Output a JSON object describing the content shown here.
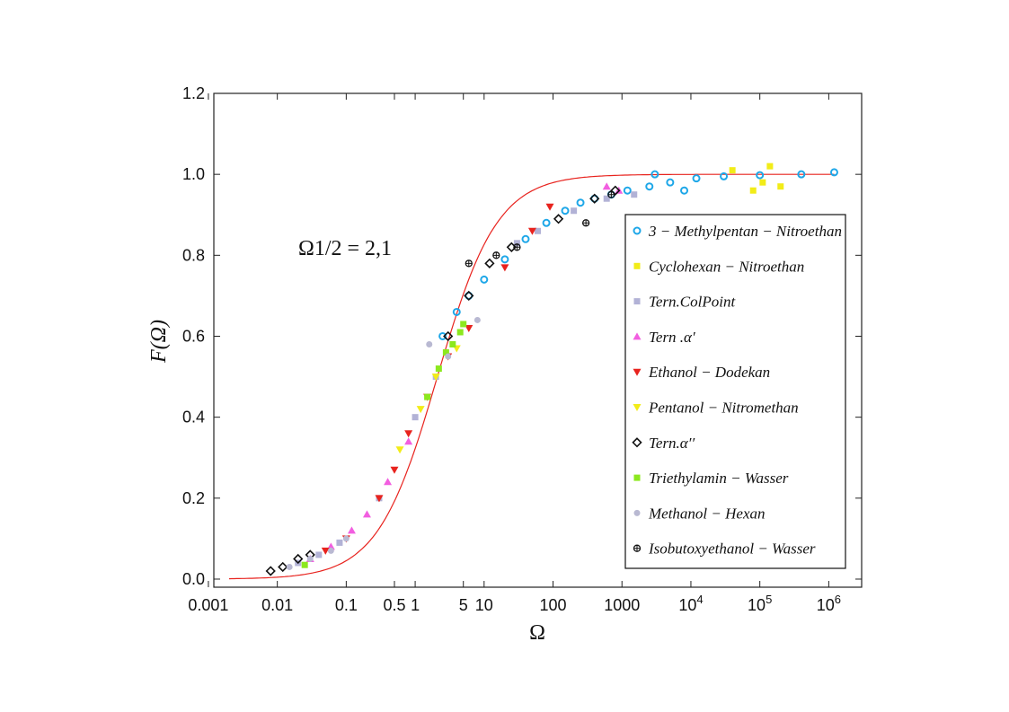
{
  "chart_data": {
    "type": "scatter",
    "title": "",
    "xlabel": "Ω",
    "ylabel": "F(Ω)",
    "xscale": "log",
    "xlim": [
      0.0012,
      3000000
    ],
    "ylim": [
      -0.02,
      1.2
    ],
    "grid": false,
    "legend_position": "right-center",
    "annotation": "Ω1/2 = 2,1",
    "x_ticks": [
      {
        "value": 0.001,
        "label": "0.001"
      },
      {
        "value": 0.01,
        "label": "0.01"
      },
      {
        "value": 0.1,
        "label": "0.1"
      },
      {
        "value": 0.5,
        "label": "0.5"
      },
      {
        "value": 1,
        "label": "1"
      },
      {
        "value": 5,
        "label": "5"
      },
      {
        "value": 10,
        "label": "10"
      },
      {
        "value": 100,
        "label": "100"
      },
      {
        "value": 1000,
        "label": "1000"
      },
      {
        "value": 10000,
        "label": "10^4"
      },
      {
        "value": 100000,
        "label": "10^5"
      },
      {
        "value": 1000000,
        "label": "10^6"
      }
    ],
    "y_ticks": [
      {
        "value": 0.0,
        "label": "0.0"
      },
      {
        "value": 0.2,
        "label": "0.2"
      },
      {
        "value": 0.4,
        "label": "0.4"
      },
      {
        "value": 0.6,
        "label": "0.6"
      },
      {
        "value": 0.8,
        "label": "0.8"
      },
      {
        "value": 1.0,
        "label": "1.0"
      },
      {
        "value": 1.2,
        "label": "1.2"
      }
    ],
    "fit_curve": {
      "name": "fit",
      "color": "#e8231e",
      "half_value_omega": 2.1
    },
    "series": [
      {
        "name": "3 − Methylpentan − Nitroethan",
        "marker": "circle-dot",
        "color": "#1ea7e8",
        "points": [
          [
            2.5,
            0.6
          ],
          [
            4,
            0.66
          ],
          [
            6,
            0.7
          ],
          [
            10,
            0.74
          ],
          [
            20,
            0.79
          ],
          [
            40,
            0.84
          ],
          [
            80,
            0.88
          ],
          [
            150,
            0.91
          ],
          [
            250,
            0.93
          ],
          [
            400,
            0.94
          ],
          [
            700,
            0.95
          ],
          [
            1200,
            0.96
          ],
          [
            2500,
            0.97
          ],
          [
            5000,
            0.98
          ],
          [
            12000,
            0.99
          ],
          [
            30000,
            0.995
          ],
          [
            100000,
            0.998
          ],
          [
            400000,
            1.0
          ],
          [
            1200000,
            1.005
          ],
          [
            3000,
            1.0
          ],
          [
            8000,
            0.96
          ]
        ]
      },
      {
        "name": "Cyclohexan − Nitroethan",
        "marker": "square",
        "color": "#f2ec18",
        "points": [
          [
            40000,
            1.01
          ],
          [
            80000,
            0.96
          ],
          [
            110000,
            0.98
          ],
          [
            140000,
            1.02
          ],
          [
            200000,
            0.97
          ]
        ]
      },
      {
        "name": "Tern.ColPoint",
        "marker": "square",
        "color": "#b2b2d6",
        "points": [
          [
            0.02,
            0.04
          ],
          [
            0.04,
            0.06
          ],
          [
            0.08,
            0.09
          ],
          [
            0.3,
            0.2
          ],
          [
            1,
            0.4
          ],
          [
            2,
            0.5
          ],
          [
            30,
            0.83
          ],
          [
            60,
            0.86
          ],
          [
            200,
            0.91
          ],
          [
            600,
            0.94
          ],
          [
            1500,
            0.95
          ]
        ]
      },
      {
        "name": "Tern .α′",
        "marker": "triangle-up",
        "color": "#f25ee0",
        "points": [
          [
            0.03,
            0.05
          ],
          [
            0.06,
            0.08
          ],
          [
            0.12,
            0.12
          ],
          [
            0.2,
            0.16
          ],
          [
            0.4,
            0.24
          ],
          [
            0.8,
            0.34
          ],
          [
            600,
            0.97
          ],
          [
            900,
            0.96
          ]
        ]
      },
      {
        "name": "Ethanol − Dodekan",
        "marker": "triangle-down",
        "color": "#e8231e",
        "points": [
          [
            0.05,
            0.07
          ],
          [
            0.1,
            0.1
          ],
          [
            0.3,
            0.2
          ],
          [
            0.5,
            0.27
          ],
          [
            0.8,
            0.36
          ],
          [
            1.5,
            0.45
          ],
          [
            3,
            0.55
          ],
          [
            6,
            0.62
          ],
          [
            20,
            0.77
          ],
          [
            50,
            0.86
          ],
          [
            90,
            0.92
          ]
        ]
      },
      {
        "name": "Pentanol − Nitromethan",
        "marker": "triangle-down",
        "color": "#f2ec18",
        "points": [
          [
            0.6,
            0.32
          ],
          [
            1.2,
            0.42
          ],
          [
            2,
            0.5
          ],
          [
            4,
            0.57
          ]
        ]
      },
      {
        "name": "Tern.α′′",
        "marker": "diamond",
        "color": "#111111",
        "points": [
          [
            0.008,
            0.02
          ],
          [
            0.012,
            0.03
          ],
          [
            0.02,
            0.05
          ],
          [
            0.03,
            0.06
          ],
          [
            3,
            0.6
          ],
          [
            6,
            0.7
          ],
          [
            12,
            0.78
          ],
          [
            25,
            0.82
          ],
          [
            120,
            0.89
          ],
          [
            400,
            0.94
          ],
          [
            800,
            0.96
          ]
        ]
      },
      {
        "name": "Triethylamin − Wasser",
        "marker": "square",
        "color": "#8ce81e",
        "points": [
          [
            0.025,
            0.035
          ],
          [
            1.5,
            0.45
          ],
          [
            2.2,
            0.52
          ],
          [
            2.8,
            0.56
          ],
          [
            3.5,
            0.58
          ],
          [
            4.5,
            0.61
          ],
          [
            5,
            0.63
          ]
        ]
      },
      {
        "name": "Methanol − Hexan",
        "marker": "circle",
        "color": "#b9b9d2",
        "points": [
          [
            0.015,
            0.03
          ],
          [
            0.03,
            0.05
          ],
          [
            0.06,
            0.07
          ],
          [
            0.1,
            0.1
          ],
          [
            1.6,
            0.58
          ],
          [
            3,
            0.55
          ],
          [
            8,
            0.64
          ]
        ]
      },
      {
        "name": "Isobutoxyethanol − Wasser",
        "marker": "circle-cross",
        "color": "#111111",
        "points": [
          [
            6,
            0.78
          ],
          [
            15,
            0.8
          ],
          [
            30,
            0.82
          ],
          [
            300,
            0.88
          ],
          [
            700,
            0.95
          ]
        ]
      }
    ]
  }
}
